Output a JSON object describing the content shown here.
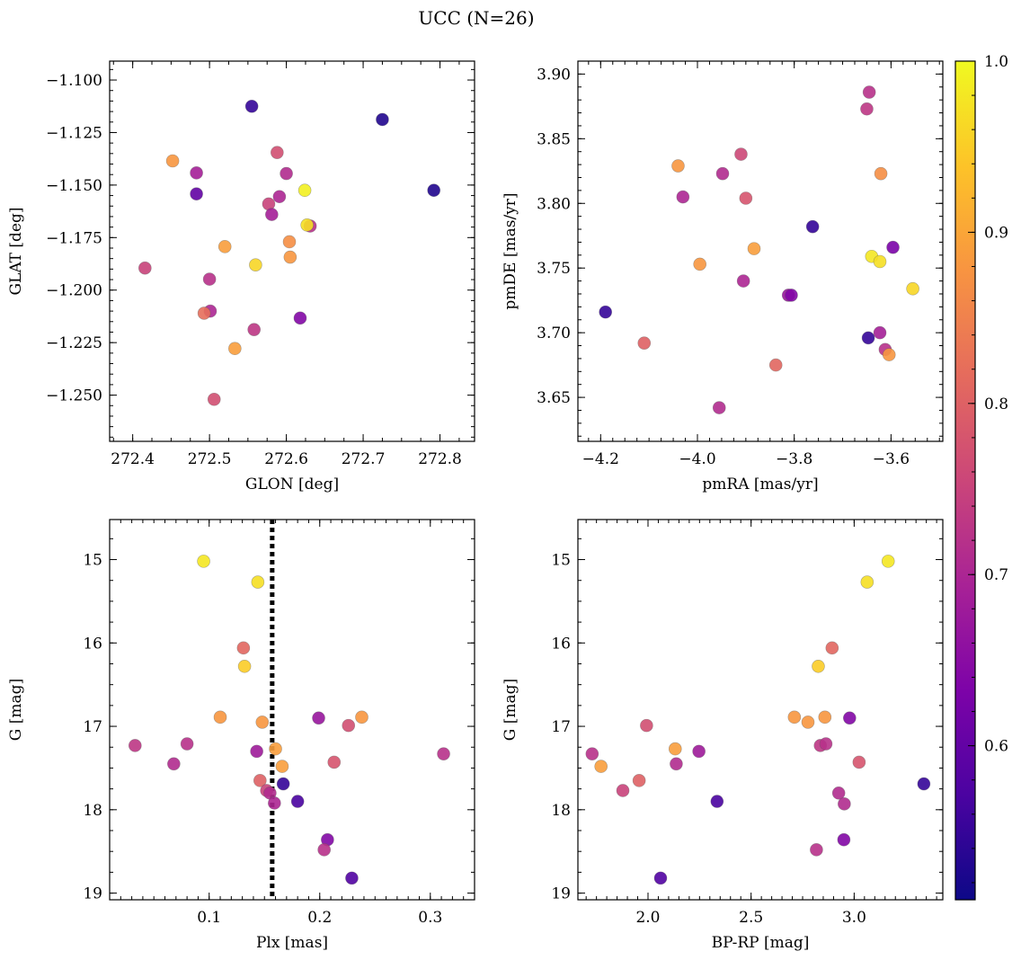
{
  "figure": {
    "title": "UCC (N=26)"
  },
  "colorbar": {
    "ticks": [
      "0.6",
      "0.7",
      "0.8",
      "0.9",
      "1.0"
    ],
    "range": [
      0.51,
      1.0
    ],
    "colormap": "plasma"
  },
  "chart_data": [
    {
      "type": "scatter",
      "xlabel": "GLON [deg]",
      "ylabel": "GLAT [deg]",
      "xlim": [
        272.37,
        272.845
      ],
      "ylim": [
        -1.272,
        -1.091
      ],
      "y_inverted": false,
      "xticks": [
        "272.4",
        "272.5",
        "272.6",
        "272.7",
        "272.8"
      ],
      "yticks": [
        "-1.100",
        "-1.125",
        "-1.150",
        "-1.175",
        "-1.200",
        "-1.225",
        "-1.250"
      ],
      "points": [
        {
          "x": 272.555,
          "y": -1.1125,
          "c": 0.55
        },
        {
          "x": 272.725,
          "y": -1.1188,
          "c": 0.53
        },
        {
          "x": 272.588,
          "y": -1.1345,
          "c": 0.77
        },
        {
          "x": 272.452,
          "y": -1.1385,
          "c": 0.88
        },
        {
          "x": 272.483,
          "y": -1.1442,
          "c": 0.69
        },
        {
          "x": 272.6,
          "y": -1.1445,
          "c": 0.71
        },
        {
          "x": 272.483,
          "y": -1.1542,
          "c": 0.6
        },
        {
          "x": 272.624,
          "y": -1.1525,
          "c": 0.99
        },
        {
          "x": 272.792,
          "y": -1.1525,
          "c": 0.53
        },
        {
          "x": 272.591,
          "y": -1.1555,
          "c": 0.7
        },
        {
          "x": 272.577,
          "y": -1.159,
          "c": 0.75
        },
        {
          "x": 272.581,
          "y": -1.164,
          "c": 0.69
        },
        {
          "x": 272.631,
          "y": -1.1695,
          "c": 0.72
        },
        {
          "x": 272.627,
          "y": -1.169,
          "c": 0.97
        },
        {
          "x": 272.604,
          "y": -1.177,
          "c": 0.87
        },
        {
          "x": 272.52,
          "y": -1.1793,
          "c": 0.89
        },
        {
          "x": 272.605,
          "y": -1.1843,
          "c": 0.88
        },
        {
          "x": 272.56,
          "y": -1.188,
          "c": 0.96
        },
        {
          "x": 272.416,
          "y": -1.1895,
          "c": 0.75
        },
        {
          "x": 272.5,
          "y": -1.1948,
          "c": 0.72
        },
        {
          "x": 272.501,
          "y": -1.21,
          "c": 0.7
        },
        {
          "x": 272.493,
          "y": -1.211,
          "c": 0.82
        },
        {
          "x": 272.618,
          "y": -1.2133,
          "c": 0.64
        },
        {
          "x": 272.558,
          "y": -1.2188,
          "c": 0.73
        },
        {
          "x": 272.533,
          "y": -1.2278,
          "c": 0.89
        },
        {
          "x": 272.506,
          "y": -1.252,
          "c": 0.77
        }
      ]
    },
    {
      "type": "scatter",
      "xlabel": "pmRA [mas/yr]",
      "ylabel": "pmDE [mas/yr]",
      "xlim": [
        -4.247,
        -3.493
      ],
      "ylim": [
        3.616,
        3.91
      ],
      "y_inverted": false,
      "xticks": [
        "-4.2",
        "-4.0",
        "-3.8",
        "-3.6"
      ],
      "yticks": [
        "3.65",
        "3.70",
        "3.75",
        "3.80",
        "3.85",
        "3.90"
      ],
      "points": [
        {
          "x": -3.645,
          "y": 3.886,
          "c": 0.72
        },
        {
          "x": -3.65,
          "y": 3.873,
          "c": 0.73
        },
        {
          "x": -3.91,
          "y": 3.838,
          "c": 0.76
        },
        {
          "x": -4.04,
          "y": 3.829,
          "c": 0.88
        },
        {
          "x": -3.948,
          "y": 3.823,
          "c": 0.71
        },
        {
          "x": -3.621,
          "y": 3.823,
          "c": 0.87
        },
        {
          "x": -4.03,
          "y": 3.805,
          "c": 0.7
        },
        {
          "x": -3.9,
          "y": 3.804,
          "c": 0.78
        },
        {
          "x": -3.762,
          "y": 3.782,
          "c": 0.55
        },
        {
          "x": -3.596,
          "y": 3.766,
          "c": 0.63
        },
        {
          "x": -3.883,
          "y": 3.765,
          "c": 0.89
        },
        {
          "x": -3.64,
          "y": 3.759,
          "c": 0.98
        },
        {
          "x": -3.623,
          "y": 3.755,
          "c": 0.97
        },
        {
          "x": -3.995,
          "y": 3.753,
          "c": 0.88
        },
        {
          "x": -3.555,
          "y": 3.734,
          "c": 0.96
        },
        {
          "x": -3.905,
          "y": 3.74,
          "c": 0.7
        },
        {
          "x": -3.812,
          "y": 3.729,
          "c": 0.67
        },
        {
          "x": -3.806,
          "y": 3.729,
          "c": 0.64
        },
        {
          "x": -4.19,
          "y": 3.716,
          "c": 0.55
        },
        {
          "x": -3.623,
          "y": 3.7,
          "c": 0.69
        },
        {
          "x": -3.647,
          "y": 3.696,
          "c": 0.55
        },
        {
          "x": -4.11,
          "y": 3.692,
          "c": 0.8
        },
        {
          "x": -3.612,
          "y": 3.687,
          "c": 0.72
        },
        {
          "x": -3.604,
          "y": 3.683,
          "c": 0.88
        },
        {
          "x": -3.838,
          "y": 3.675,
          "c": 0.81
        },
        {
          "x": -3.955,
          "y": 3.642,
          "c": 0.71
        }
      ]
    },
    {
      "type": "scatter",
      "xlabel": "Plx [mas]",
      "ylabel": "G [mag]",
      "xlim": [
        0.01,
        0.34
      ],
      "ylim": [
        19.08,
        14.52
      ],
      "y_inverted": true,
      "xticks": [
        "0.1",
        "0.2",
        "0.3"
      ],
      "yticks": [
        "15",
        "16",
        "17",
        "18",
        "19"
      ],
      "vline": {
        "x": 0.157,
        "style": "dotted"
      },
      "points": [
        {
          "x": 0.095,
          "y": 15.02,
          "c": 0.98
        },
        {
          "x": 0.144,
          "y": 15.27,
          "c": 0.97
        },
        {
          "x": 0.131,
          "y": 16.06,
          "c": 0.81
        },
        {
          "x": 0.132,
          "y": 16.28,
          "c": 0.95
        },
        {
          "x": 0.11,
          "y": 16.89,
          "c": 0.88
        },
        {
          "x": 0.148,
          "y": 16.95,
          "c": 0.88
        },
        {
          "x": 0.199,
          "y": 16.9,
          "c": 0.67
        },
        {
          "x": 0.226,
          "y": 16.99,
          "c": 0.77
        },
        {
          "x": 0.238,
          "y": 16.89,
          "c": 0.88
        },
        {
          "x": 0.033,
          "y": 17.23,
          "c": 0.73
        },
        {
          "x": 0.08,
          "y": 17.21,
          "c": 0.72
        },
        {
          "x": 0.143,
          "y": 17.3,
          "c": 0.68
        },
        {
          "x": 0.16,
          "y": 17.27,
          "c": 0.89
        },
        {
          "x": 0.312,
          "y": 17.33,
          "c": 0.72
        },
        {
          "x": 0.068,
          "y": 17.45,
          "c": 0.71
        },
        {
          "x": 0.166,
          "y": 17.48,
          "c": 0.89
        },
        {
          "x": 0.213,
          "y": 17.43,
          "c": 0.78
        },
        {
          "x": 0.146,
          "y": 17.65,
          "c": 0.8
        },
        {
          "x": 0.167,
          "y": 17.69,
          "c": 0.55
        },
        {
          "x": 0.152,
          "y": 17.77,
          "c": 0.75
        },
        {
          "x": 0.155,
          "y": 17.8,
          "c": 0.71
        },
        {
          "x": 0.159,
          "y": 17.92,
          "c": 0.7
        },
        {
          "x": 0.18,
          "y": 17.9,
          "c": 0.57
        },
        {
          "x": 0.207,
          "y": 18.36,
          "c": 0.64
        },
        {
          "x": 0.204,
          "y": 18.48,
          "c": 0.72
        },
        {
          "x": 0.229,
          "y": 18.82,
          "c": 0.58
        }
      ]
    },
    {
      "type": "scatter",
      "xlabel": "BP-RP [mag]",
      "ylabel": "G [mag]",
      "xlim": [
        1.66,
        3.43
      ],
      "ylim": [
        19.08,
        14.52
      ],
      "y_inverted": true,
      "xticks": [
        "2.0",
        "2.5",
        "3.0"
      ],
      "yticks": [
        "15",
        "16",
        "17",
        "18",
        "19"
      ],
      "points": [
        {
          "x": 3.165,
          "y": 15.02,
          "c": 0.98
        },
        {
          "x": 3.063,
          "y": 15.27,
          "c": 0.97
        },
        {
          "x": 2.893,
          "y": 16.06,
          "c": 0.81
        },
        {
          "x": 2.826,
          "y": 16.28,
          "c": 0.95
        },
        {
          "x": 1.993,
          "y": 16.99,
          "c": 0.77
        },
        {
          "x": 2.71,
          "y": 16.89,
          "c": 0.88
        },
        {
          "x": 2.776,
          "y": 16.95,
          "c": 0.88
        },
        {
          "x": 2.858,
          "y": 16.89,
          "c": 0.88
        },
        {
          "x": 2.978,
          "y": 16.9,
          "c": 0.64
        },
        {
          "x": 2.132,
          "y": 17.27,
          "c": 0.89
        },
        {
          "x": 2.247,
          "y": 17.3,
          "c": 0.68
        },
        {
          "x": 2.836,
          "y": 17.23,
          "c": 0.73
        },
        {
          "x": 2.863,
          "y": 17.21,
          "c": 0.72
        },
        {
          "x": 1.729,
          "y": 17.33,
          "c": 0.72
        },
        {
          "x": 2.137,
          "y": 17.45,
          "c": 0.71
        },
        {
          "x": 3.024,
          "y": 17.43,
          "c": 0.78
        },
        {
          "x": 1.772,
          "y": 17.48,
          "c": 0.89
        },
        {
          "x": 1.957,
          "y": 17.65,
          "c": 0.8
        },
        {
          "x": 3.338,
          "y": 17.69,
          "c": 0.55
        },
        {
          "x": 1.878,
          "y": 17.77,
          "c": 0.75
        },
        {
          "x": 2.925,
          "y": 17.8,
          "c": 0.71
        },
        {
          "x": 2.335,
          "y": 17.9,
          "c": 0.57
        },
        {
          "x": 2.952,
          "y": 17.93,
          "c": 0.71
        },
        {
          "x": 2.95,
          "y": 18.36,
          "c": 0.64
        },
        {
          "x": 2.817,
          "y": 18.48,
          "c": 0.72
        },
        {
          "x": 2.061,
          "y": 18.82,
          "c": 0.58
        }
      ]
    }
  ]
}
